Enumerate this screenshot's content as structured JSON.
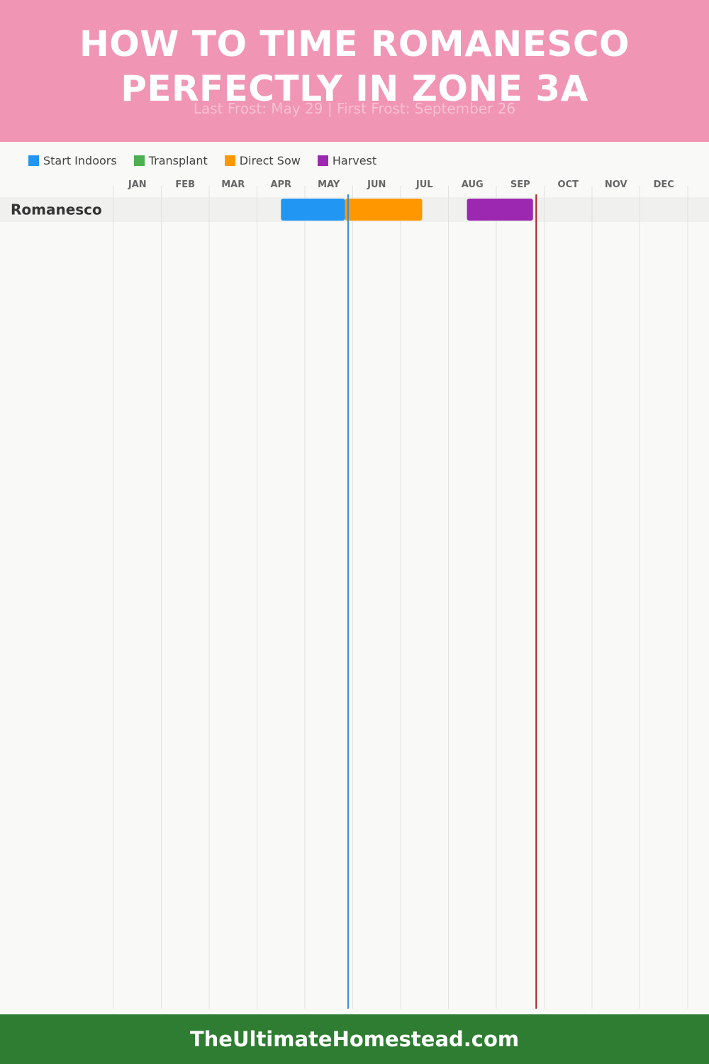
{
  "header": {
    "title_line1": "HOW TO TIME ROMANESCO",
    "title_line2": "PERFECTLY IN ZONE 3A",
    "subtitle": "Last Frost: May 29 | First Frost: September 26"
  },
  "legend": [
    {
      "label": "Start Indoors",
      "color": "#2196f3"
    },
    {
      "label": "Transplant",
      "color": "#4caf50"
    },
    {
      "label": "Direct Sow",
      "color": "#ff9800"
    },
    {
      "label": "Harvest",
      "color": "#9c27b0"
    }
  ],
  "chart_data": {
    "type": "gantt",
    "months": [
      "JAN",
      "FEB",
      "MAR",
      "APR",
      "MAY",
      "JUN",
      "JUL",
      "AUG",
      "SEP",
      "OCT",
      "NOV",
      "DEC"
    ],
    "rows": [
      {
        "crop": "Romanesco",
        "bars": [
          {
            "series": "Start Indoors",
            "start": "Apr 16",
            "end": "May 27"
          },
          {
            "series": "Direct Sow",
            "start": "May 27",
            "end": "Jul 15"
          },
          {
            "series": "Harvest",
            "start": "Aug 13",
            "end": "Sep 24"
          }
        ]
      }
    ],
    "markers": [
      {
        "name": "Last Frost",
        "date": "May 29",
        "color": "#3a8fd6"
      },
      {
        "name": "First Frost",
        "date": "Sep 26",
        "color": "#b22222"
      }
    ],
    "grid": true
  },
  "footer": {
    "text": "TheUltimateHomestead.com"
  }
}
